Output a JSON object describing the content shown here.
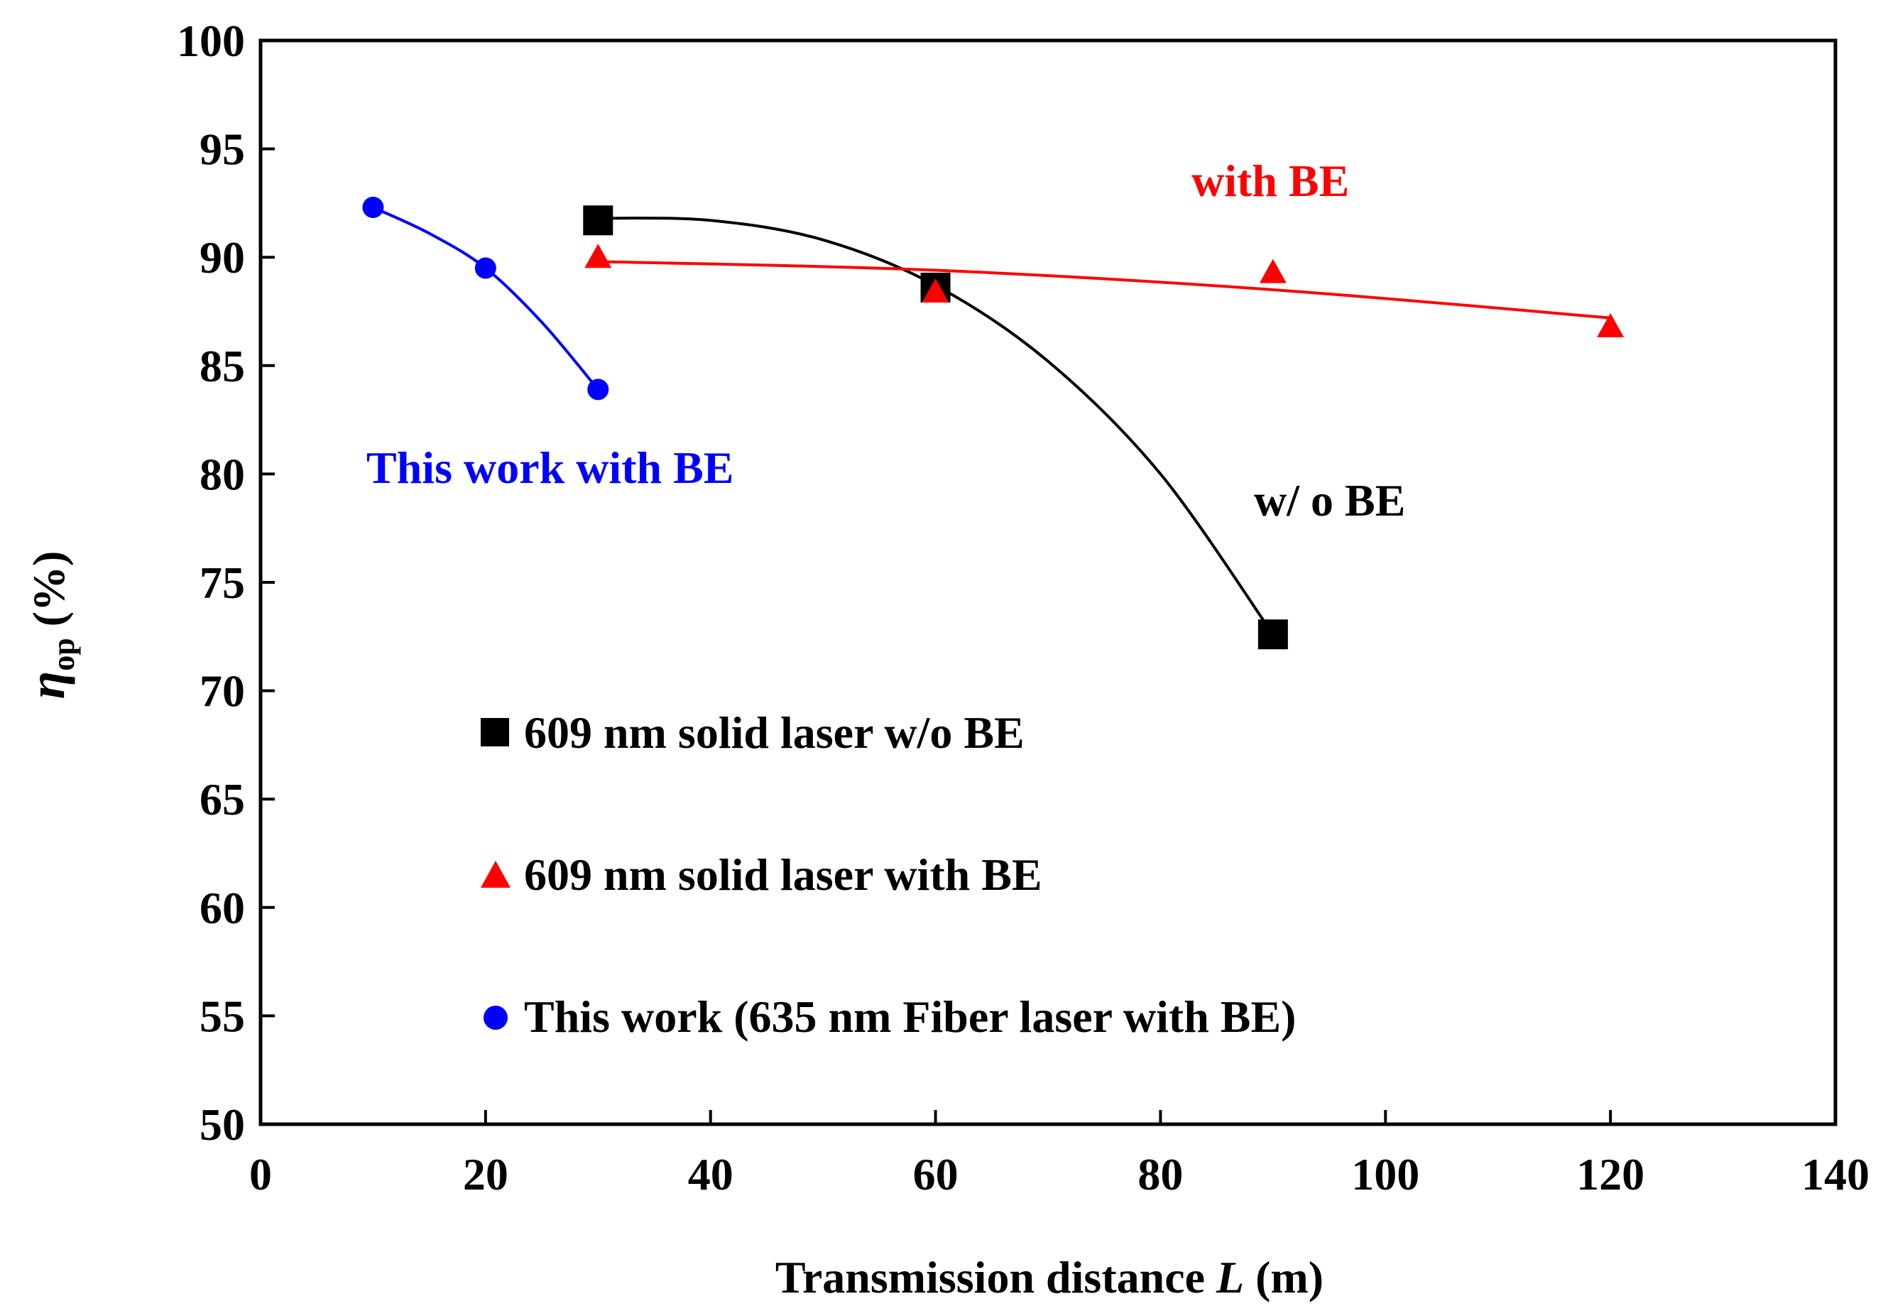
{
  "chart_data": {
    "type": "scatter",
    "title": "",
    "xlabel": "Transmission distance",
    "xlabel_var": "L",
    "xlabel_unit": "(m)",
    "ylabel_symbol": "η",
    "ylabel_sub": "op",
    "ylabel_unit": "(%)",
    "xlim": [
      0,
      140
    ],
    "ylim": [
      50,
      100
    ],
    "xticks": [
      0,
      20,
      40,
      60,
      80,
      100,
      120,
      140
    ],
    "yticks": [
      50,
      55,
      60,
      65,
      70,
      75,
      80,
      85,
      90,
      95,
      100
    ],
    "grid": false,
    "legend_position": "lower-left inside",
    "series": [
      {
        "name": "609 nm solid laser w/o BE",
        "marker": "square",
        "color": "#000000",
        "x": [
          30,
          60,
          90
        ],
        "y": [
          91.7,
          88.6,
          72.6
        ],
        "fit_curve": [
          [
            30,
            91.8
          ],
          [
            40,
            91.7
          ],
          [
            50,
            90.8
          ],
          [
            60,
            88.7
          ],
          [
            70,
            85.2
          ],
          [
            80,
            80.0
          ],
          [
            90,
            72.6
          ]
        ]
      },
      {
        "name": "609 nm solid laser with BE",
        "marker": "triangle",
        "color": "#ff0000",
        "x": [
          30,
          60,
          90,
          120
        ],
        "y": [
          90.0,
          88.4,
          89.3,
          86.8
        ],
        "fit_curve": [
          [
            30,
            89.8
          ],
          [
            60,
            89.4
          ],
          [
            90,
            88.5
          ],
          [
            120,
            87.2
          ]
        ]
      },
      {
        "name": "This work (635 nm Fiber laser with BE)",
        "marker": "circle",
        "color": "#0000ff",
        "x": [
          10,
          20,
          30
        ],
        "y": [
          92.3,
          89.5,
          83.9
        ],
        "fit_curve": [
          [
            10,
            92.3
          ],
          [
            15,
            91.1
          ],
          [
            20,
            89.5
          ],
          [
            25,
            87.0
          ],
          [
            30,
            83.9
          ]
        ]
      }
    ],
    "annotations": [
      {
        "text": "with BE",
        "color": "#ff0000"
      },
      {
        "text": "w/ o BE",
        "color": "#000000"
      },
      {
        "text": "This work with BE",
        "color": "#0000ff"
      }
    ]
  }
}
